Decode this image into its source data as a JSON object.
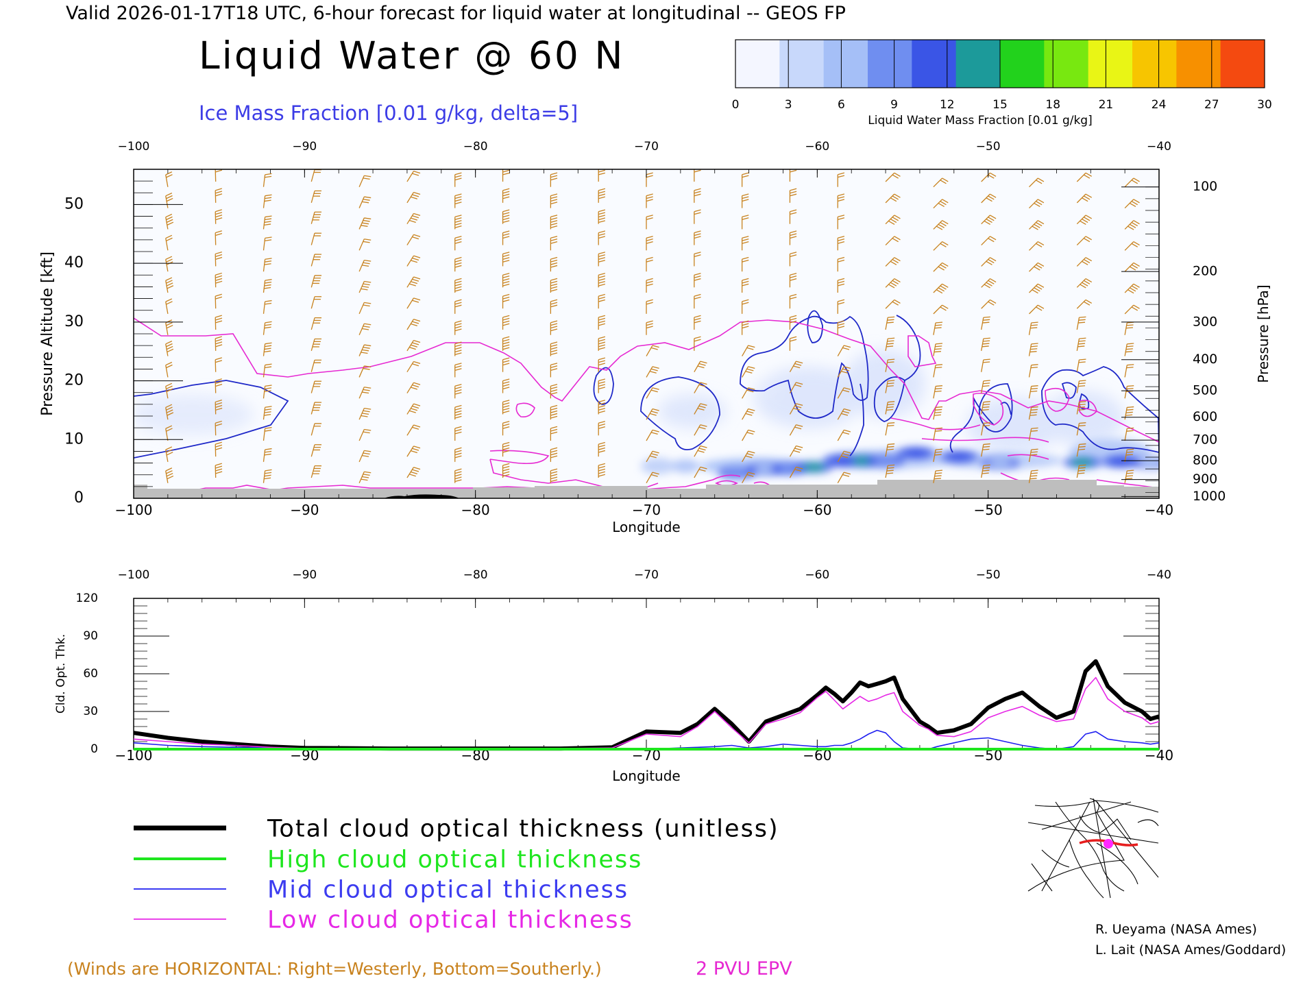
{
  "header": {
    "valid_line": "Valid 2026-01-17T18 UTC, 6-hour forecast for liquid water at longitudinal -- GEOS FP",
    "title": "Liquid Water @ 60 N",
    "subtitle": "Ice Mass Fraction [0.01 g/kg, delta=5]"
  },
  "colorbar": {
    "label": "Liquid Water Mass Fraction [0.01 g/kg]",
    "ticks": [
      "0",
      "3",
      "6",
      "9",
      "12",
      "15",
      "18",
      "21",
      "24",
      "27",
      "30"
    ],
    "colors": [
      "#f4f6ff",
      "#c8d8fb",
      "#a5bff7",
      "#6f8ef0",
      "#3a55e6",
      "#1c9a9a",
      "#22d21c",
      "#78e810",
      "#e9f515",
      "#f7c500",
      "#f79000",
      "#f44a10"
    ]
  },
  "colors": {
    "wind_barb": "#c8821e",
    "ice_contour": "#1e28c8",
    "pv_contour": "#e628d2",
    "terrain": "#bebebe",
    "title_blue": "#3c3ce6",
    "high_cloud": "#1ee61e",
    "mid_cloud": "#1e1ef0",
    "low_cloud": "#e628e6"
  },
  "footer": {
    "winds_note": "(Winds are HORIZONTAL: Right=Westerly, Bottom=Southerly.)",
    "epv_label": "2 PVU EPV",
    "credit1": "R. Ueyama (NASA Ames)",
    "credit2": "L. Lait (NASA Ames/Goddard)"
  },
  "chart_data": [
    {
      "type": "heatmap",
      "title": "Liquid Water @ 60 N",
      "xlabel": "Longitude",
      "ylabel": "Pressure Altitude [kft]",
      "ylabel_right": "Pressure [hPa]",
      "xlim": [
        -100,
        -40
      ],
      "ylim": [
        0,
        56
      ],
      "x_ticks": [
        "−100",
        "−90",
        "−80",
        "−70",
        "−60",
        "−50",
        "−40"
      ],
      "y_ticks": [
        "0",
        "10",
        "20",
        "30",
        "40",
        "50"
      ],
      "pressure_ticks": [
        {
          "hpa": "100",
          "kft": 53
        },
        {
          "hpa": "200",
          "kft": 38.6
        },
        {
          "hpa": "300",
          "kft": 30
        },
        {
          "hpa": "400",
          "kft": 23.6
        },
        {
          "hpa": "500",
          "kft": 18.3
        },
        {
          "hpa": "600",
          "kft": 13.8
        },
        {
          "hpa": "700",
          "kft": 9.9
        },
        {
          "hpa": "800",
          "kft": 6.4
        },
        {
          "hpa": "900",
          "kft": 3.2
        },
        {
          "hpa": "1000",
          "kft": 0.3
        }
      ],
      "liquid_water_blobs": [
        {
          "lon": -64.7,
          "kft": 4.3,
          "value": 10
        },
        {
          "lon": -63.0,
          "kft": 5.0,
          "value": 6
        },
        {
          "lon": -61.6,
          "kft": 5.0,
          "value": 9
        },
        {
          "lon": -60.2,
          "kft": 5.3,
          "value": 17
        },
        {
          "lon": -58.5,
          "kft": 6.4,
          "value": 13
        },
        {
          "lon": -57.3,
          "kft": 6.4,
          "value": 17
        },
        {
          "lon": -56.0,
          "kft": 6.4,
          "value": 9
        },
        {
          "lon": -54.2,
          "kft": 7.7,
          "value": 14
        },
        {
          "lon": -51.7,
          "kft": 7.1,
          "value": 14
        },
        {
          "lon": -49.3,
          "kft": 6.0,
          "value": 6
        },
        {
          "lon": -44.5,
          "kft": 6.1,
          "value": 16
        },
        {
          "lon": -42.2,
          "kft": 6.3,
          "value": 13
        },
        {
          "lon": -40.5,
          "kft": 6.0,
          "value": 7
        }
      ],
      "ice_contour_level": 5,
      "epv_contour_pvu": 2
    },
    {
      "type": "line",
      "xlabel": "Longitude",
      "ylabel": "Cld. Opt. Thk.",
      "xlim": [
        -100,
        -40
      ],
      "ylim": [
        0,
        120
      ],
      "x_ticks": [
        "−100",
        "−90",
        "−80",
        "−70",
        "−60",
        "−50",
        "−40"
      ],
      "y_ticks": [
        "0",
        "30",
        "60",
        "90",
        "120"
      ],
      "x": [
        -100,
        -98,
        -96,
        -94,
        -92,
        -90,
        -85,
        -80,
        -75,
        -72,
        -70,
        -68,
        -67,
        -66,
        -65,
        -64,
        -63,
        -62,
        -61,
        -60,
        -59.5,
        -59,
        -58.5,
        -58,
        -57.5,
        -57,
        -56.5,
        -56,
        -55.5,
        -55,
        -54,
        -53.5,
        -53,
        -52,
        -51,
        -50,
        -49,
        -48,
        -47,
        -46,
        -45,
        -44.3,
        -43.7,
        -43,
        -42,
        -41,
        -40.5,
        -40
      ],
      "series": [
        {
          "name": "Total cloud optical thickness (unitless)",
          "values": [
            13,
            9,
            6,
            4,
            2,
            1,
            0.5,
            0.5,
            0.5,
            1.5,
            14,
            13,
            20,
            32,
            20,
            6,
            22,
            27,
            32,
            43,
            49,
            44,
            38,
            45,
            53,
            50,
            52,
            54,
            57,
            40,
            22,
            18,
            13,
            15,
            20,
            33,
            40,
            45,
            34,
            25,
            30,
            62,
            70,
            50,
            37,
            30,
            24,
            26
          ]
        },
        {
          "name": "High cloud optical thickness",
          "values": [
            0,
            0,
            0,
            0,
            0,
            0,
            0,
            0,
            0,
            0,
            0,
            0,
            0,
            0,
            0,
            0,
            0,
            0,
            0,
            0,
            0,
            0,
            0,
            0,
            0,
            0,
            0,
            0,
            0,
            0,
            0,
            0,
            0,
            0,
            0,
            0,
            0,
            0,
            0,
            0,
            0,
            0,
            0,
            0,
            0,
            0,
            0,
            0
          ]
        },
        {
          "name": "Mid cloud optical thickness",
          "values": [
            5,
            3,
            2,
            1.5,
            1,
            0.5,
            0,
            0,
            0,
            0,
            0,
            1,
            1.5,
            2,
            3,
            1,
            2,
            4,
            3,
            2,
            2,
            3,
            3,
            5,
            8,
            12,
            15,
            13,
            6,
            1,
            0,
            0,
            2,
            5,
            8,
            9,
            6,
            3,
            1,
            0,
            2,
            12,
            14,
            8,
            6,
            5,
            4,
            5
          ]
        },
        {
          "name": "Low cloud optical thickness",
          "values": [
            8,
            6,
            4,
            3,
            1.5,
            0.5,
            0.5,
            0.5,
            0.5,
            1,
            12,
            10,
            18,
            30,
            17,
            5,
            20,
            24,
            29,
            41,
            46,
            39,
            32,
            37,
            42,
            38,
            40,
            43,
            45,
            30,
            19,
            16,
            11,
            10,
            14,
            25,
            30,
            34,
            27,
            22,
            24,
            48,
            57,
            40,
            30,
            25,
            20,
            22
          ]
        }
      ],
      "legend": "below"
    }
  ]
}
